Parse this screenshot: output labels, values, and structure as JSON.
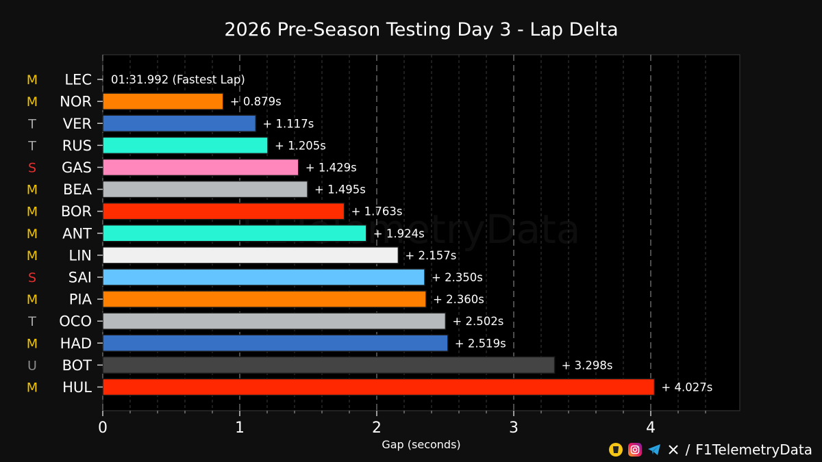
{
  "title": "2026 Pre-Season Testing Day 3 - Lap Delta",
  "watermark": "F1TelemetryData",
  "footer": {
    "handle_prefix": "/",
    "handle": "F1TelemetryData"
  },
  "tyre_colors": {
    "M": "#f2c500",
    "T": "#a8a8a8",
    "S": "#e53030",
    "U": "#8c8c8c"
  },
  "chart_data": {
    "type": "bar",
    "orientation": "horizontal",
    "title": "2026 Pre-Season Testing Day 3 - Lap Delta",
    "xlabel": "Gap (seconds)",
    "ylabel": "",
    "xlim": [
      0,
      4.6
    ],
    "xticks": [
      0,
      1,
      2,
      3,
      4
    ],
    "grid": true,
    "reference_label": "01:31.992 (Fastest Lap)",
    "rows": [
      {
        "driver": "LEC",
        "tyre": "M",
        "gap": 0,
        "label": "01:31.992 (Fastest Lap)",
        "color": "#ed1c24"
      },
      {
        "driver": "NOR",
        "tyre": "M",
        "gap": 0.879,
        "label": "+ 0.879s",
        "color": "#ff8000"
      },
      {
        "driver": "VER",
        "tyre": "T",
        "gap": 1.117,
        "label": "+ 1.117s",
        "color": "#3671c6"
      },
      {
        "driver": "RUS",
        "tyre": "T",
        "gap": 1.205,
        "label": "+ 1.205s",
        "color": "#27f4d2"
      },
      {
        "driver": "GAS",
        "tyre": "S",
        "gap": 1.429,
        "label": "+ 1.429s",
        "color": "#ff87bc"
      },
      {
        "driver": "BEA",
        "tyre": "M",
        "gap": 1.495,
        "label": "+ 1.495s",
        "color": "#b6babd"
      },
      {
        "driver": "BOR",
        "tyre": "M",
        "gap": 1.763,
        "label": "+ 1.763s",
        "color": "#ff2d00"
      },
      {
        "driver": "ANT",
        "tyre": "M",
        "gap": 1.924,
        "label": "+ 1.924s",
        "color": "#27f4d2"
      },
      {
        "driver": "LIN",
        "tyre": "M",
        "gap": 2.157,
        "label": "+ 2.157s",
        "color": "#f0f0f0"
      },
      {
        "driver": "SAI",
        "tyre": "S",
        "gap": 2.35,
        "label": "+ 2.350s",
        "color": "#64c4ff"
      },
      {
        "driver": "PIA",
        "tyre": "M",
        "gap": 2.36,
        "label": "+ 2.360s",
        "color": "#ff8000"
      },
      {
        "driver": "OCO",
        "tyre": "T",
        "gap": 2.502,
        "label": "+ 2.502s",
        "color": "#b6babd"
      },
      {
        "driver": "HAD",
        "tyre": "M",
        "gap": 2.519,
        "label": "+ 2.519s",
        "color": "#3671c6"
      },
      {
        "driver": "BOT",
        "tyre": "U",
        "gap": 3.298,
        "label": "+ 3.298s",
        "color": "#444444"
      },
      {
        "driver": "HUL",
        "tyre": "M",
        "gap": 4.027,
        "label": "+ 4.027s",
        "color": "#ff2800"
      }
    ]
  }
}
